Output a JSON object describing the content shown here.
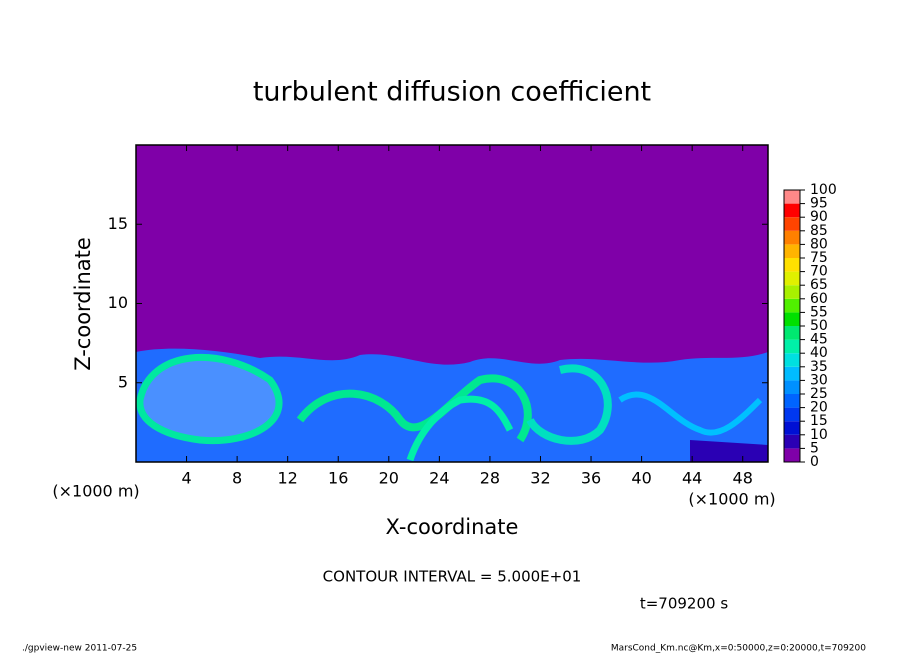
{
  "chart_data": {
    "type": "heatmap",
    "title": "turbulent diffusion coefficient",
    "x_label": "X-coordinate",
    "y_label": "Z-coordinate",
    "x_unit": "(×1000 m)",
    "xlim": [
      0,
      50
    ],
    "xticks": [
      4,
      8,
      12,
      16,
      20,
      24,
      28,
      32,
      36,
      40,
      44,
      48
    ],
    "ylim": [
      0,
      20
    ],
    "yticks": [
      5,
      10,
      15
    ],
    "colorbar": {
      "levels": [
        0,
        5,
        10,
        15,
        20,
        25,
        30,
        35,
        40,
        45,
        50,
        55,
        60,
        65,
        70,
        75,
        80,
        85,
        90,
        95,
        100
      ],
      "colors": [
        "#7f00a8",
        "#2a00b4",
        "#0010d4",
        "#0038f0",
        "#0064ff",
        "#0090ff",
        "#00bcff",
        "#00e0e0",
        "#00f0a8",
        "#00e870",
        "#00e000",
        "#50f000",
        "#a8f000",
        "#e0f000",
        "#ffe000",
        "#ffb400",
        "#ff8000",
        "#ff4400",
        "#ff0000",
        "#ff8888"
      ]
    },
    "annotations": [
      "CONTOUR INTERVAL = 5.000E+01",
      "t=709200 s"
    ],
    "footer_left": "./gpview-new   2011-07-25",
    "footer_right": "MarsCond_Km.nc@Km,x=0:50000,z=0:20000,t=709200"
  }
}
